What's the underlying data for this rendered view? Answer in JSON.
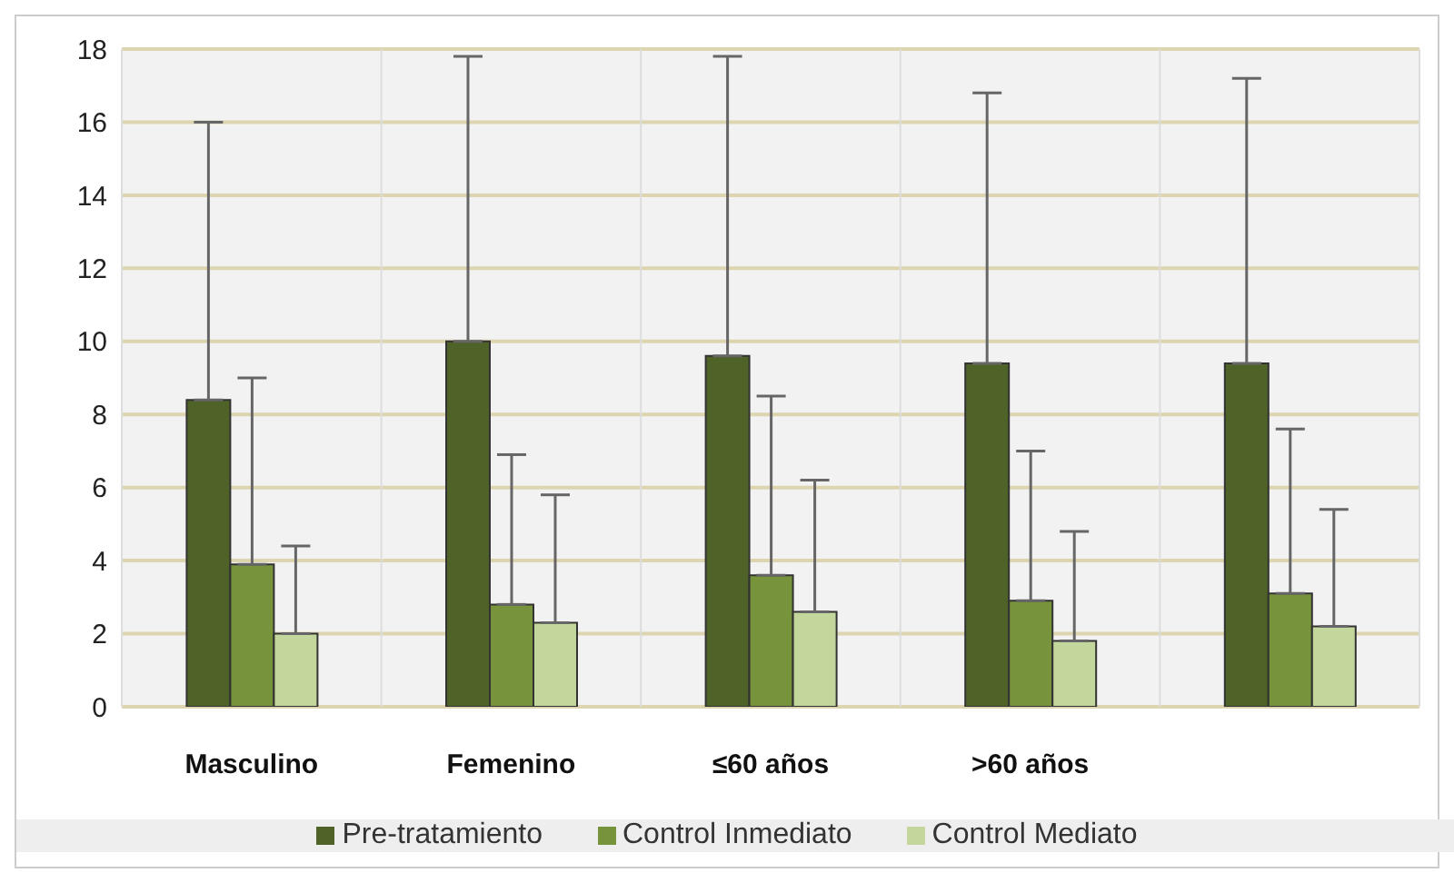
{
  "chart_data": {
    "type": "bar",
    "categories": [
      "Masculino",
      "Femenino",
      "≤60 años",
      ">60 años",
      null
    ],
    "series": [
      {
        "name": "Pre-tratamiento",
        "color": "#4f6228",
        "values": [
          8.4,
          10.0,
          9.6,
          9.4,
          9.4
        ],
        "errors": [
          [
            8.4,
            16.0
          ],
          [
            10.0,
            17.8
          ],
          [
            9.6,
            17.8
          ],
          [
            9.4,
            16.8
          ],
          [
            9.4,
            17.2
          ]
        ]
      },
      {
        "name": "Control Inmediato",
        "color": "#77933c",
        "values": [
          3.9,
          2.8,
          3.6,
          2.9,
          3.1
        ],
        "errors": [
          [
            3.9,
            9.0
          ],
          [
            2.8,
            6.9
          ],
          [
            3.6,
            8.5
          ],
          [
            2.9,
            7.0
          ],
          [
            3.1,
            7.6
          ]
        ]
      },
      {
        "name": "Control Mediato",
        "color": "#c3d69b",
        "values": [
          2.0,
          2.3,
          2.6,
          1.8,
          2.2
        ],
        "errors": [
          [
            2.0,
            4.4
          ],
          [
            2.3,
            5.8
          ],
          [
            2.6,
            6.2
          ],
          [
            1.8,
            4.8
          ],
          [
            2.2,
            5.4
          ]
        ]
      }
    ],
    "ylim": [
      0,
      18
    ],
    "yticks": [
      0,
      2,
      4,
      6,
      8,
      10,
      12,
      14,
      16,
      18
    ],
    "grid": true,
    "legend": "bottom"
  }
}
